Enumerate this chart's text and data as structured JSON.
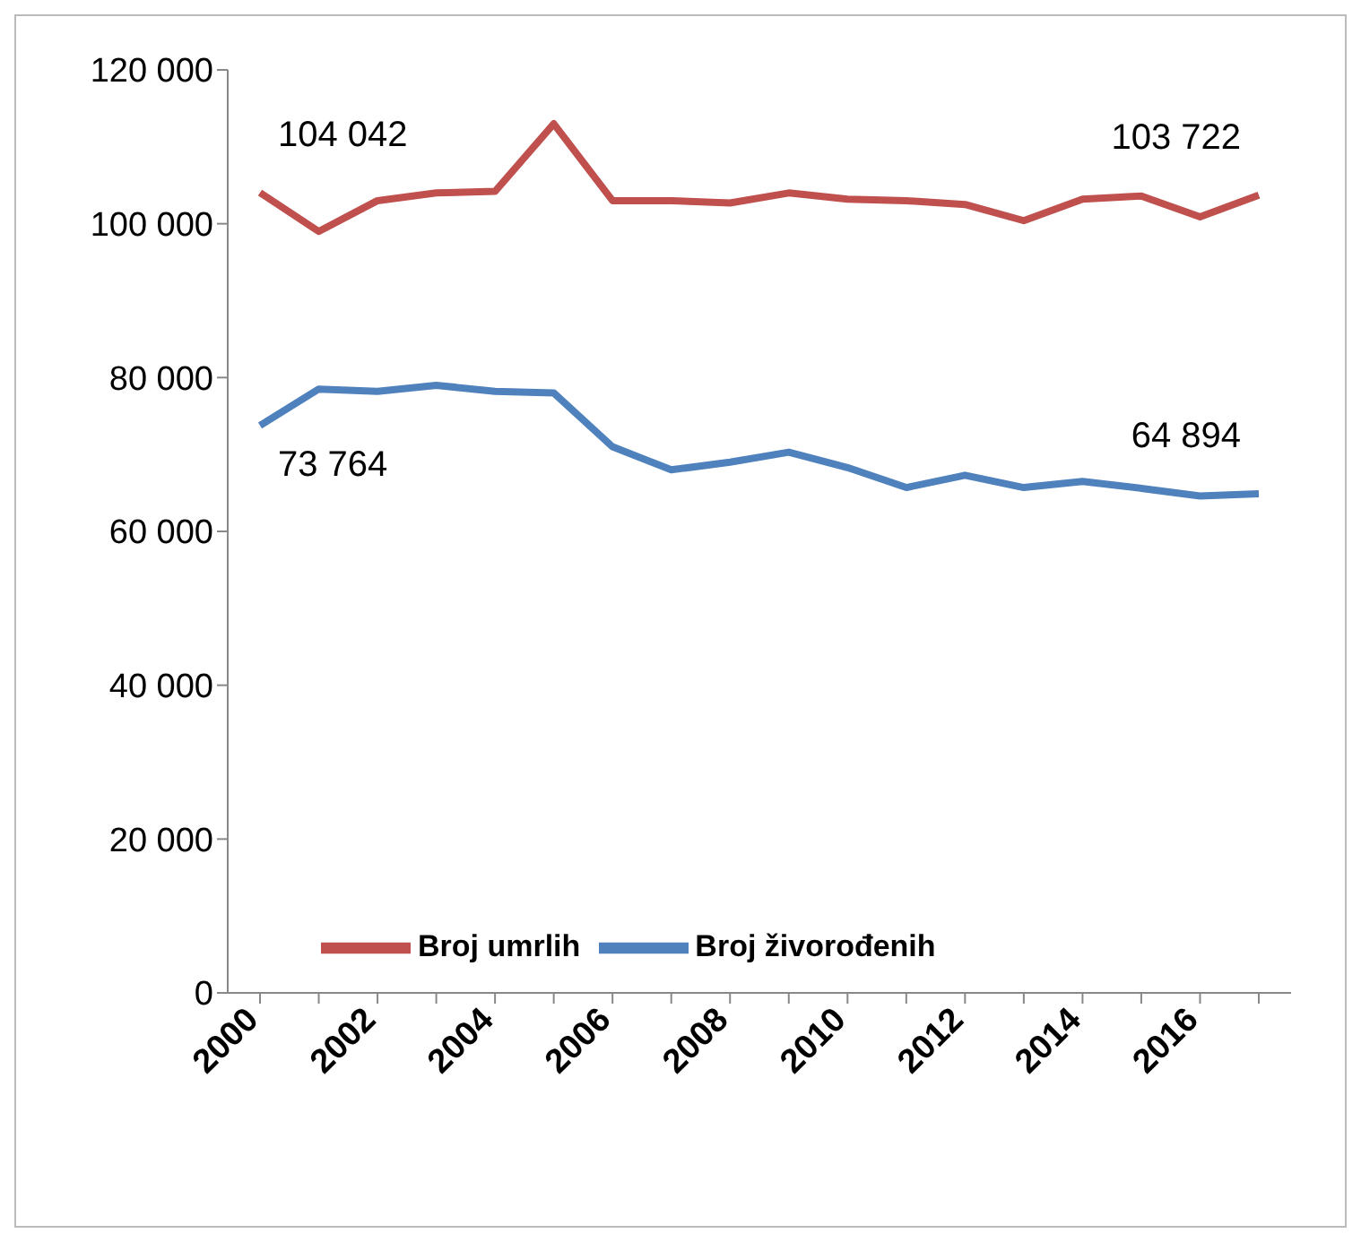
{
  "chart_data": {
    "type": "line",
    "categories": [
      "2000",
      null,
      "2002",
      null,
      "2004",
      null,
      "2006",
      null,
      "2008",
      null,
      "2010",
      null,
      "2012",
      null,
      "2014",
      null,
      "2016",
      null
    ],
    "series": [
      {
        "name": "Broj živorođenih",
        "color": "#4f81bd",
        "values": [
          73764,
          78500,
          78200,
          79000,
          78200,
          78000,
          71000,
          68000,
          69000,
          70300,
          68300,
          65700,
          67300,
          65700,
          66500,
          65600,
          64600,
          64894
        ],
        "value_labels": [
          "73 764",
          null,
          null,
          null,
          null,
          null,
          null,
          null,
          null,
          null,
          null,
          null,
          null,
          null,
          null,
          null,
          null,
          "64 894"
        ]
      },
      {
        "name": "Broj umrlih",
        "color": "#c0504d",
        "values": [
          104042,
          99000,
          103000,
          104000,
          104200,
          113000,
          103000,
          103000,
          102700,
          104000,
          103200,
          103000,
          102500,
          100400,
          103200,
          103600,
          100900,
          103722
        ],
        "value_labels": [
          "104 042",
          null,
          null,
          null,
          null,
          null,
          null,
          null,
          null,
          null,
          null,
          null,
          null,
          null,
          null,
          null,
          null,
          "103 722"
        ]
      }
    ],
    "ylim": [
      0,
      120000
    ],
    "yticks": [
      0,
      {
        "value": 20000,
        "label": "20 000"
      },
      {
        "value": 40000,
        "label": "40 000"
      },
      {
        "value": 60000,
        "label": "60 000"
      },
      {
        "value": 80000,
        "label": "80 000"
      },
      {
        "value": 100000,
        "label": "100 000"
      },
      {
        "value": 120000,
        "label": "120 000"
      }
    ],
    "grid": false,
    "legend": "bottom",
    "marker": "none",
    "line_style": "solid"
  }
}
